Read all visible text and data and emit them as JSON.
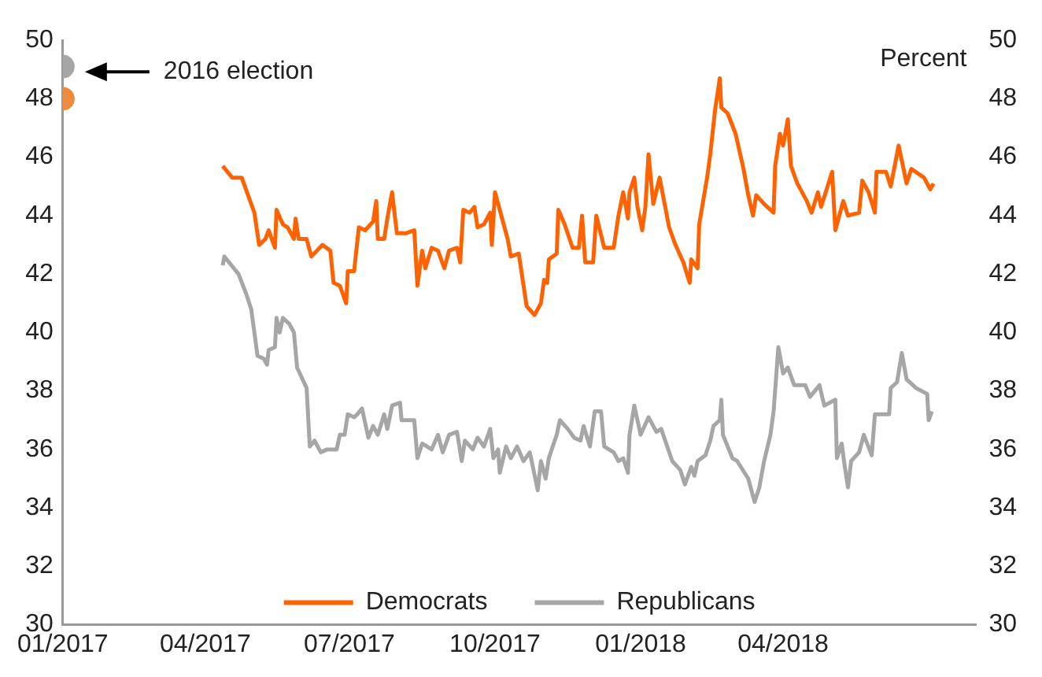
{
  "chart_data": {
    "type": "line",
    "xlim": [
      "2017-01-01",
      "2018-08-01"
    ],
    "xticks": [
      {
        "value": "2017-01-01",
        "label": "01/2017"
      },
      {
        "value": "2017-04-01",
        "label": "04/2017"
      },
      {
        "value": "2017-07-01",
        "label": "07/2017"
      },
      {
        "value": "2017-10-01",
        "label": "10/2017"
      },
      {
        "value": "2018-01-01",
        "label": "01/2018"
      },
      {
        "value": "2018-04-01",
        "label": "04/2018"
      }
    ],
    "ylim": [
      30,
      50
    ],
    "yticks": [
      30,
      32,
      34,
      36,
      38,
      40,
      42,
      44,
      46,
      48,
      50
    ],
    "y2lim": [
      30,
      50
    ],
    "y2ticks": [
      30,
      32,
      34,
      36,
      38,
      40,
      42,
      44,
      46,
      48,
      50
    ],
    "y2label": "Percent",
    "grid": false,
    "legend": "bottom",
    "annotations": [
      "2016 election"
    ],
    "series": [
      {
        "name": "Democrats",
        "color": "#ff6200",
        "x": [
          "2017-04-12",
          "2017-04-18",
          "2017-04-24",
          "2017-05-02",
          "2017-05-05",
          "2017-05-09",
          "2017-05-11",
          "2017-05-15",
          "2017-05-16",
          "2017-05-20",
          "2017-05-23",
          "2017-05-27",
          "2017-05-28",
          "2017-05-30",
          "2017-06-04",
          "2017-06-07",
          "2017-06-14",
          "2017-06-19",
          "2017-06-21",
          "2017-06-25",
          "2017-06-29",
          "2017-06-30",
          "2017-07-04",
          "2017-07-07",
          "2017-07-11",
          "2017-07-16",
          "2017-07-18",
          "2017-07-19",
          "2017-07-23",
          "2017-07-25",
          "2017-07-28",
          "2017-07-31",
          "2017-08-06",
          "2017-08-11",
          "2017-08-13",
          "2017-08-16",
          "2017-08-18",
          "2017-08-22",
          "2017-08-26",
          "2017-08-30",
          "2017-09-02",
          "2017-09-07",
          "2017-09-09",
          "2017-09-11",
          "2017-09-15",
          "2017-09-18",
          "2017-09-20",
          "2017-09-24",
          "2017-09-28",
          "2017-09-29",
          "2017-10-01",
          "2017-10-04",
          "2017-10-09",
          "2017-10-11",
          "2017-10-16",
          "2017-10-21",
          "2017-10-26",
          "2017-10-30",
          "2017-11-01",
          "2017-11-03",
          "2017-11-04",
          "2017-11-09",
          "2017-11-10",
          "2017-11-14",
          "2017-11-19",
          "2017-11-23",
          "2017-11-25",
          "2017-11-27",
          "2017-12-02",
          "2017-12-04",
          "2017-12-09",
          "2017-12-15",
          "2017-12-18",
          "2017-12-21",
          "2017-12-24",
          "2017-12-25",
          "2017-12-28",
          "2017-12-30",
          "2018-01-02",
          "2018-01-04",
          "2018-01-06",
          "2018-01-09",
          "2018-01-13",
          "2018-01-19",
          "2018-01-23",
          "2018-01-28",
          "2018-02-01",
          "2018-02-02",
          "2018-02-06",
          "2018-02-07",
          "2018-02-12",
          "2018-02-14",
          "2018-02-17",
          "2018-02-20",
          "2018-02-21",
          "2018-02-25",
          "2018-03-02",
          "2018-03-07",
          "2018-03-10",
          "2018-03-13",
          "2018-03-15",
          "2018-03-20",
          "2018-03-26",
          "2018-03-27",
          "2018-03-30",
          "2018-04-01",
          "2018-04-04",
          "2018-04-06",
          "2018-04-10",
          "2018-04-16",
          "2018-04-19",
          "2018-04-23",
          "2018-04-25",
          "2018-05-02",
          "2018-05-04",
          "2018-05-09",
          "2018-05-12",
          "2018-05-19",
          "2018-05-21",
          "2018-05-25",
          "2018-05-29",
          "2018-05-30",
          "2018-06-05",
          "2018-06-08",
          "2018-06-13",
          "2018-06-18",
          "2018-06-21",
          "2018-06-29",
          "2018-07-03",
          "2018-07-05"
        ],
        "values": [
          45.7,
          45.3,
          45.3,
          44.1,
          43.0,
          43.2,
          43.5,
          42.9,
          44.2,
          43.7,
          43.6,
          43.2,
          43.9,
          43.2,
          43.2,
          42.6,
          43.0,
          42.8,
          41.7,
          41.6,
          41.0,
          42.1,
          42.1,
          43.6,
          43.5,
          43.8,
          44.5,
          43.2,
          43.2,
          43.9,
          44.8,
          43.4,
          43.4,
          43.5,
          41.6,
          42.8,
          42.2,
          42.9,
          42.8,
          42.2,
          42.8,
          42.9,
          42.4,
          44.2,
          44.1,
          44.3,
          43.6,
          43.7,
          44.1,
          43.0,
          44.8,
          44.2,
          43.2,
          42.6,
          42.7,
          40.9,
          40.6,
          41.0,
          41.8,
          41.7,
          42.5,
          42.7,
          44.2,
          43.7,
          42.9,
          42.9,
          44.0,
          42.4,
          42.4,
          44.0,
          42.9,
          42.9,
          44.0,
          44.8,
          43.9,
          44.8,
          45.3,
          44.3,
          43.5,
          44.3,
          46.1,
          44.4,
          45.3,
          43.6,
          43.0,
          42.4,
          41.7,
          42.5,
          42.2,
          43.7,
          45.3,
          46.1,
          47.6,
          48.7,
          47.7,
          47.5,
          46.8,
          45.6,
          44.7,
          44.0,
          44.7,
          44.4,
          44.1,
          45.7,
          46.8,
          46.4,
          47.3,
          45.7,
          45.1,
          44.5,
          44.1,
          44.8,
          44.3,
          45.5,
          43.5,
          44.5,
          44.0,
          44.1,
          45.2,
          44.8,
          44.1,
          45.5,
          45.5,
          45.0,
          46.4,
          45.1,
          45.6,
          45.3,
          44.9,
          45.1
        ]
      },
      {
        "name": "Republicans",
        "color": "#a6a6a6",
        "x": [
          "2017-04-12",
          "2017-04-13",
          "2017-04-22",
          "2017-04-27",
          "2017-04-30",
          "2017-05-04",
          "2017-05-08",
          "2017-05-10",
          "2017-05-11",
          "2017-05-15",
          "2017-05-16",
          "2017-05-18",
          "2017-05-20",
          "2017-05-24",
          "2017-05-27",
          "2017-05-29",
          "2017-06-04",
          "2017-06-06",
          "2017-06-09",
          "2017-06-13",
          "2017-06-17",
          "2017-06-23",
          "2017-06-25",
          "2017-06-28",
          "2017-06-30",
          "2017-07-04",
          "2017-07-06",
          "2017-07-09",
          "2017-07-13",
          "2017-07-16",
          "2017-07-19",
          "2017-07-23",
          "2017-07-25",
          "2017-07-28",
          "2017-08-02",
          "2017-08-03",
          "2017-08-11",
          "2017-08-13",
          "2017-08-16",
          "2017-08-22",
          "2017-08-26",
          "2017-08-29",
          "2017-09-02",
          "2017-09-07",
          "2017-09-10",
          "2017-09-12",
          "2017-09-17",
          "2017-09-20",
          "2017-09-24",
          "2017-09-28",
          "2017-09-30",
          "2017-10-03",
          "2017-10-04",
          "2017-10-08",
          "2017-10-11",
          "2017-10-15",
          "2017-10-19",
          "2017-10-23",
          "2017-10-28",
          "2017-10-30",
          "2017-11-02",
          "2017-11-04",
          "2017-11-09",
          "2017-11-11",
          "2017-11-16",
          "2017-11-20",
          "2017-11-24",
          "2017-11-26",
          "2017-11-30",
          "2017-12-03",
          "2017-12-07",
          "2017-12-09",
          "2017-12-15",
          "2017-12-18",
          "2017-12-21",
          "2017-12-24",
          "2017-12-25",
          "2017-12-28",
          "2018-01-01",
          "2018-01-06",
          "2018-01-11",
          "2018-01-14",
          "2018-01-21",
          "2018-01-26",
          "2018-01-29",
          "2018-02-02",
          "2018-02-04",
          "2018-02-06",
          "2018-02-11",
          "2018-02-14",
          "2018-02-16",
          "2018-02-20",
          "2018-02-21",
          "2018-02-22",
          "2018-02-28",
          "2018-03-03",
          "2018-03-10",
          "2018-03-14",
          "2018-03-17",
          "2018-03-20",
          "2018-03-24",
          "2018-03-26",
          "2018-03-29",
          "2018-04-01",
          "2018-04-04",
          "2018-04-08",
          "2018-04-15",
          "2018-04-18",
          "2018-04-24",
          "2018-04-27",
          "2018-05-04",
          "2018-05-05",
          "2018-05-08",
          "2018-05-10",
          "2018-05-12",
          "2018-05-14",
          "2018-05-19",
          "2018-05-22",
          "2018-05-27",
          "2018-05-29",
          "2018-06-07",
          "2018-06-08",
          "2018-06-12",
          "2018-06-15",
          "2018-06-18",
          "2018-06-24",
          "2018-07-01",
          "2018-07-02",
          "2018-07-04"
        ],
        "values": [
          42.3,
          42.6,
          42.0,
          41.3,
          40.8,
          39.2,
          39.1,
          38.9,
          39.4,
          39.5,
          40.5,
          40.0,
          40.5,
          40.3,
          40.0,
          38.8,
          38.1,
          36.1,
          36.3,
          35.9,
          36.0,
          36.0,
          36.5,
          36.5,
          37.2,
          37.1,
          37.2,
          37.4,
          36.4,
          36.8,
          36.5,
          37.2,
          36.7,
          37.5,
          37.6,
          37.0,
          37.0,
          35.7,
          36.2,
          36.0,
          36.5,
          35.9,
          36.5,
          36.6,
          35.6,
          36.3,
          36.0,
          36.4,
          36.1,
          36.7,
          35.7,
          36.0,
          35.2,
          36.1,
          35.7,
          36.1,
          35.6,
          35.9,
          34.6,
          35.6,
          35.0,
          35.7,
          36.5,
          37.0,
          36.7,
          36.4,
          36.3,
          36.8,
          36.1,
          37.3,
          37.3,
          36.1,
          35.9,
          35.6,
          35.7,
          35.2,
          36.5,
          37.5,
          36.5,
          37.1,
          36.6,
          36.7,
          35.6,
          35.3,
          34.8,
          35.4,
          35.1,
          35.6,
          35.8,
          36.3,
          36.8,
          37.0,
          37.7,
          36.5,
          35.7,
          35.6,
          35.0,
          34.2,
          34.7,
          35.6,
          36.5,
          37.3,
          39.5,
          38.6,
          38.8,
          38.2,
          38.2,
          37.8,
          38.2,
          37.5,
          37.7,
          35.7,
          36.2,
          35.4,
          34.7,
          35.6,
          35.9,
          36.5,
          35.8,
          37.2,
          37.2,
          38.1,
          38.3,
          39.3,
          38.4,
          38.1,
          37.9,
          37.0,
          37.3
        ]
      },
      {
        "type": "scatter",
        "color": "#a6a6a6",
        "x": [
          "2017-01-01"
        ],
        "values": [
          49.1
        ]
      },
      {
        "type": "scatter",
        "color": "#f08a3c",
        "x": [
          "2017-01-01"
        ],
        "values": [
          48.0
        ]
      }
    ]
  }
}
